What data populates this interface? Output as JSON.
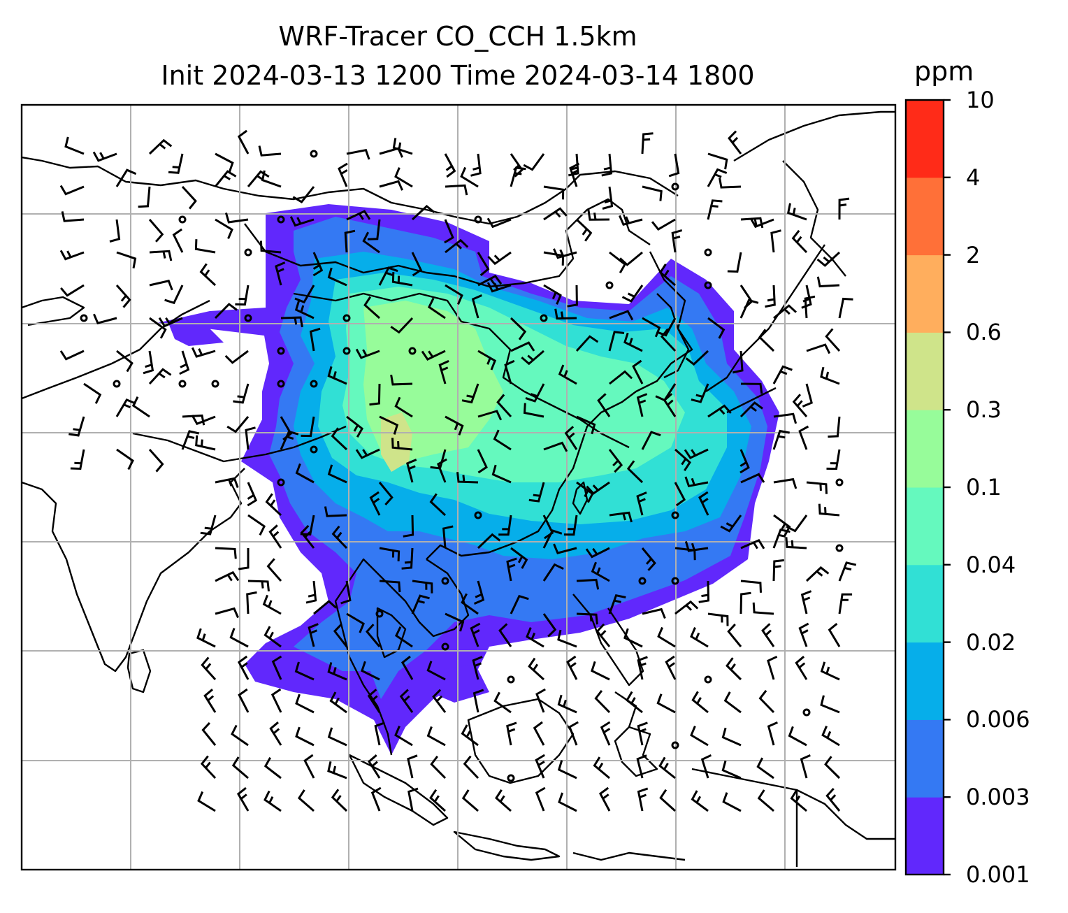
{
  "title": {
    "line1": "WRF-Tracer CO_CCH 1.5km",
    "line2": "Init 2024-03-13 1200 Time 2024-03-14 1800"
  },
  "colorbar": {
    "unit": "ppm",
    "ticks": [
      "0.001",
      "0.003",
      "0.006",
      "0.02",
      "0.04",
      "0.1",
      "0.3",
      "0.6",
      "2",
      "4",
      "10"
    ],
    "colors": [
      "#6128fc",
      "#3479f3",
      "#06aeea",
      "#31e0d5",
      "#65f9be",
      "#97fc9a",
      "#cfe48a",
      "#ffae5d",
      "#ff7038",
      "#ff2b18"
    ]
  },
  "map": {
    "region": "East and Southeast Asia",
    "field": "CO tracer concentration",
    "overlay": "wind barbs",
    "gridlines": true
  }
}
